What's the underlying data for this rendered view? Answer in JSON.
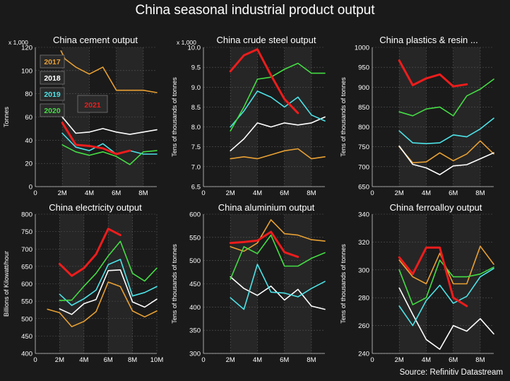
{
  "title": "China seasonal industrial product output",
  "source": "Source: Refinitiv Datastream",
  "colors": {
    "2017": "#e8a033",
    "2018": "#ffffff",
    "2019": "#4de3e8",
    "2020": "#44dd44",
    "2021": "#ee1c1c",
    "background": "#1a1a1a",
    "plot_band": "#262626",
    "grid": "#555555"
  },
  "chart_data": [
    {
      "type": "line",
      "title": "China cement output",
      "ylabel": "Tonnes",
      "multiplier": "x 1,000",
      "xlim": [
        0,
        9
      ],
      "ylim": [
        0,
        120
      ],
      "yticks": [
        0,
        20,
        40,
        60,
        80,
        100,
        120
      ],
      "xticks": [
        0,
        2,
        4,
        6,
        8
      ],
      "xtick_labels": [
        "0",
        "2M",
        "4M",
        "6M",
        "8M"
      ],
      "legend": [
        "2017",
        "2018",
        "2019",
        "2020",
        "2021"
      ],
      "series": [
        {
          "name": "2017",
          "x": [
            1.9,
            2.2,
            3,
            4,
            5,
            6,
            7,
            8,
            9
          ],
          "y": [
            117,
            110,
            103,
            97,
            103,
            83,
            83,
            83,
            81
          ]
        },
        {
          "name": "2018",
          "x": [
            2,
            3,
            4,
            5,
            6,
            7,
            8,
            9
          ],
          "y": [
            60,
            46,
            47,
            50,
            47,
            45,
            47,
            49
          ]
        },
        {
          "name": "2019",
          "x": [
            2,
            3,
            4,
            5,
            6,
            7,
            8,
            9
          ],
          "y": [
            46,
            34,
            31,
            37,
            28,
            31,
            28,
            28
          ]
        },
        {
          "name": "2020",
          "x": [
            2,
            3,
            4,
            5,
            6,
            7,
            8,
            9
          ],
          "y": [
            36,
            30,
            27,
            30,
            26,
            19,
            30,
            31
          ]
        },
        {
          "name": "2021",
          "x": [
            2,
            3,
            4,
            5,
            6,
            7
          ],
          "y": [
            55,
            36,
            35,
            33,
            28,
            31
          ]
        }
      ]
    },
    {
      "type": "line",
      "title": "China crude steel output",
      "ylabel": "Tens of thousands of tonnes",
      "multiplier": "x 1,000",
      "xlim": [
        0,
        9
      ],
      "ylim": [
        6.5,
        10
      ],
      "yticks": [
        6.5,
        7.0,
        7.5,
        8.0,
        8.5,
        9.0,
        9.5,
        10.0
      ],
      "ytick_labels": [
        "6.5",
        "7.0",
        "7.5",
        "8.0",
        "8.5",
        "9.0",
        "9.5",
        "10.0"
      ],
      "xticks": [
        0,
        2,
        4,
        6,
        8
      ],
      "xtick_labels": [
        "0",
        "2M",
        "4M",
        "6M",
        "8M"
      ],
      "series": [
        {
          "name": "2017",
          "x": [
            2,
            3,
            4,
            5,
            6,
            7,
            8,
            9
          ],
          "y": [
            7.2,
            7.25,
            7.2,
            7.3,
            7.4,
            7.45,
            7.2,
            7.25
          ]
        },
        {
          "name": "2018",
          "x": [
            2,
            3,
            4,
            5,
            6,
            7,
            8,
            9
          ],
          "y": [
            7.4,
            7.7,
            8.1,
            8.0,
            8.1,
            8.05,
            8.1,
            8.25
          ]
        },
        {
          "name": "2019",
          "x": [
            2,
            3,
            4,
            5,
            6,
            7,
            8,
            9
          ],
          "y": [
            8.0,
            8.4,
            8.9,
            8.75,
            8.5,
            8.75,
            8.3,
            8.15
          ]
        },
        {
          "name": "2020",
          "x": [
            2,
            3,
            4,
            5,
            6,
            7,
            8,
            9
          ],
          "y": [
            7.9,
            8.5,
            9.2,
            9.25,
            9.45,
            9.6,
            9.35,
            9.35
          ]
        },
        {
          "name": "2021",
          "x": [
            2,
            3,
            4,
            5,
            6,
            7
          ],
          "y": [
            9.4,
            9.8,
            9.95,
            9.3,
            8.7,
            8.35
          ]
        }
      ]
    },
    {
      "type": "line",
      "title": "China plastics & resin ...",
      "ylabel": "Tens of thousands of tonnes",
      "xlim": [
        0,
        9
      ],
      "ylim": [
        650,
        1000
      ],
      "yticks": [
        650,
        700,
        750,
        800,
        850,
        900,
        950,
        1000
      ],
      "xticks": [
        0,
        2,
        4,
        6,
        8
      ],
      "xtick_labels": [
        "0",
        "2M",
        "4M",
        "6M",
        "8M"
      ],
      "series": [
        {
          "name": "2017",
          "x": [
            2,
            3,
            4,
            5,
            6,
            7,
            8,
            9
          ],
          "y": [
            750,
            710,
            712,
            735,
            715,
            732,
            765,
            732
          ]
        },
        {
          "name": "2018",
          "x": [
            2,
            3,
            4,
            5,
            6,
            7,
            8,
            9
          ],
          "y": [
            752,
            706,
            697,
            680,
            702,
            705,
            720,
            735
          ]
        },
        {
          "name": "2019",
          "x": [
            2,
            3,
            4,
            5,
            6,
            7,
            8,
            9
          ],
          "y": [
            790,
            760,
            758,
            760,
            780,
            775,
            795,
            822
          ]
        },
        {
          "name": "2020",
          "x": [
            2,
            3,
            4,
            5,
            6,
            7,
            8,
            9
          ],
          "y": [
            838,
            828,
            845,
            850,
            828,
            878,
            895,
            920
          ]
        },
        {
          "name": "2021",
          "x": [
            2,
            3,
            4,
            5,
            6,
            7
          ],
          "y": [
            967,
            905,
            922,
            932,
            902,
            907
          ]
        }
      ]
    },
    {
      "type": "line",
      "title": "China electricity output",
      "ylabel": "Billions of Kilowatt/hour",
      "xlim": [
        0,
        10
      ],
      "ylim": [
        400,
        800
      ],
      "yticks": [
        400,
        450,
        500,
        550,
        600,
        650,
        700,
        750,
        800
      ],
      "xticks": [
        0,
        2,
        4,
        6,
        8,
        10
      ],
      "xtick_labels": [
        "0",
        "2M",
        "4M",
        "6M",
        "8M",
        "10M"
      ],
      "series": [
        {
          "name": "2017",
          "x": [
            1,
            2,
            3,
            4,
            5,
            6,
            7,
            8,
            9,
            10
          ],
          "y": [
            527,
            517,
            477,
            492,
            520,
            605,
            592,
            522,
            505,
            522
          ]
        },
        {
          "name": "2018",
          "x": [
            2,
            3,
            4,
            5,
            6,
            7,
            8,
            9,
            10
          ],
          "y": [
            528,
            512,
            543,
            555,
            638,
            640,
            548,
            533,
            556
          ]
        },
        {
          "name": "2019",
          "x": [
            2,
            3,
            4,
            5,
            6,
            7,
            8,
            9,
            10
          ],
          "y": [
            570,
            538,
            557,
            582,
            655,
            670,
            565,
            575,
            592
          ]
        },
        {
          "name": "2020",
          "x": [
            2,
            3,
            4,
            5,
            6,
            7,
            8,
            9,
            10
          ],
          "y": [
            552,
            553,
            593,
            630,
            680,
            722,
            630,
            608,
            645
          ]
        },
        {
          "name": "2021",
          "x": [
            2,
            3,
            4,
            5,
            6,
            7
          ],
          "y": [
            657,
            623,
            645,
            685,
            758,
            740
          ]
        }
      ]
    },
    {
      "type": "line",
      "title": "China aluminium output",
      "ylabel": "Tens of thousands of tonnes",
      "xlim": [
        0,
        9
      ],
      "ylim": [
        300,
        600
      ],
      "yticks": [
        300,
        350,
        400,
        450,
        500,
        550,
        600
      ],
      "xticks": [
        0,
        2,
        4,
        6,
        8
      ],
      "xtick_labels": [
        "0",
        "2M",
        "4M",
        "6M",
        "8M"
      ],
      "series": [
        {
          "name": "2017",
          "x": [
            2,
            3,
            4,
            5,
            6,
            7,
            8,
            9
          ],
          "y": [
            530,
            520,
            538,
            588,
            558,
            555,
            545,
            542
          ]
        },
        {
          "name": "2018",
          "x": [
            2,
            3,
            4,
            5,
            6,
            7,
            8,
            9
          ],
          "y": [
            465,
            440,
            425,
            445,
            415,
            438,
            402,
            395
          ]
        },
        {
          "name": "2019",
          "x": [
            2,
            3,
            4,
            5,
            6,
            7,
            8,
            9
          ],
          "y": [
            420,
            395,
            492,
            432,
            430,
            422,
            440,
            455
          ]
        },
        {
          "name": "2020",
          "x": [
            2,
            3,
            4,
            5,
            6,
            7,
            8,
            9
          ],
          "y": [
            460,
            530,
            515,
            555,
            488,
            488,
            505,
            517
          ]
        },
        {
          "name": "2021",
          "x": [
            2,
            3,
            4,
            5,
            6,
            7
          ],
          "y": [
            538,
            540,
            543,
            562,
            518,
            508
          ]
        }
      ]
    },
    {
      "type": "line",
      "title": "China ferroalloy output",
      "ylabel": "Tens of thousands of tonnes",
      "xlim": [
        0,
        9
      ],
      "ylim": [
        240,
        340
      ],
      "yticks": [
        240,
        260,
        280,
        300,
        320,
        340
      ],
      "xticks": [
        0,
        2,
        4,
        6,
        8
      ],
      "xtick_labels": [
        "0",
        "2M",
        "4M",
        "6M",
        "8M"
      ],
      "series": [
        {
          "name": "2017",
          "x": [
            2,
            3,
            4,
            5,
            6,
            7,
            8,
            9
          ],
          "y": [
            307,
            295,
            290,
            312,
            290,
            290,
            317,
            304
          ]
        },
        {
          "name": "2018",
          "x": [
            2,
            3,
            4,
            5,
            6,
            7,
            8,
            9
          ],
          "y": [
            287,
            268,
            250,
            243,
            260,
            256,
            265,
            254
          ]
        },
        {
          "name": "2019",
          "x": [
            2,
            3,
            4,
            5,
            6,
            7,
            8,
            9
          ],
          "y": [
            274,
            260,
            278,
            289,
            276,
            281,
            295,
            301
          ]
        },
        {
          "name": "2020",
          "x": [
            2,
            3,
            4,
            5,
            6,
            7,
            8,
            9
          ],
          "y": [
            300,
            275,
            280,
            307,
            295,
            295,
            297,
            302
          ]
        },
        {
          "name": "2021",
          "x": [
            2,
            3,
            4,
            5,
            6,
            7
          ],
          "y": [
            309,
            297,
            316,
            316,
            280,
            274
          ]
        }
      ]
    }
  ]
}
